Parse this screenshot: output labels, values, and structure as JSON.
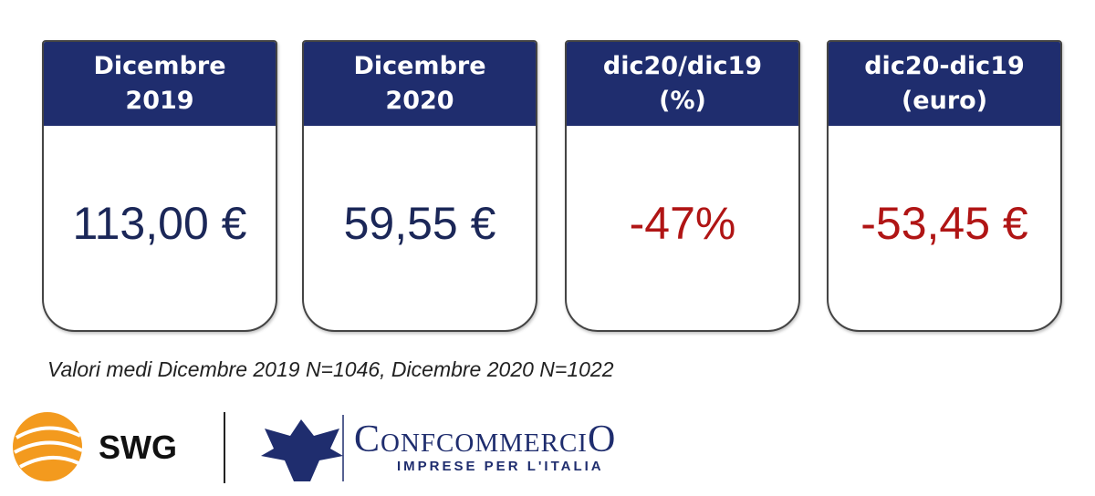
{
  "cards": [
    {
      "header": [
        "Dicembre",
        "2019"
      ],
      "value": "113,00 €"
    },
    {
      "header": [
        "Dicembre",
        "2020"
      ],
      "value": "59,55 €"
    },
    {
      "header": [
        "dic20/dic19",
        "(%)"
      ],
      "value": "-47%"
    },
    {
      "header": [
        "dic20-dic19",
        "(euro)"
      ],
      "value": "-53,45 €"
    }
  ],
  "note": "Valori medi Dicembre 2019 N=1046, Dicembre 2020 N=1022",
  "logos": {
    "swg": "SWG",
    "confcommercio": "ConfcommerciO",
    "tagline": "IMPRESE PER L'ITALIA"
  }
}
